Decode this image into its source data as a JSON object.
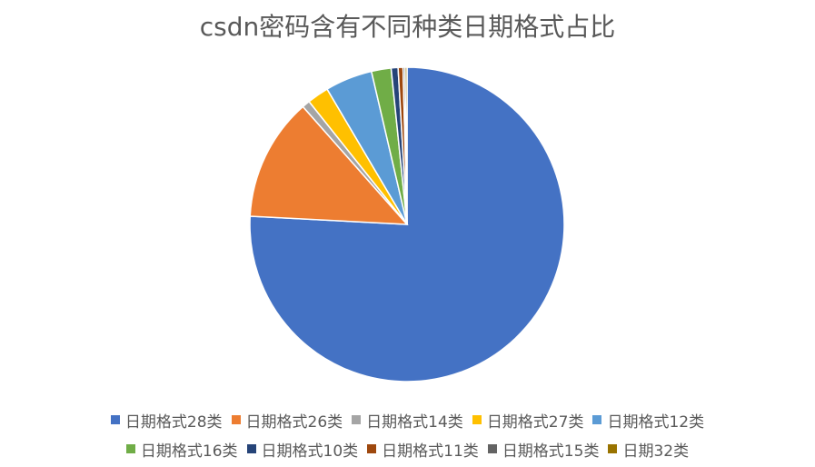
{
  "chart_data": {
    "type": "pie",
    "title": "csdn密码含有不同种类日期格式占比",
    "legend_position": "bottom",
    "series": [
      {
        "name": "日期格式28类",
        "value": 0.75,
        "color": "#4472C4"
      },
      {
        "name": "日期格式26类",
        "value": 0.125,
        "color": "#ED7D31"
      },
      {
        "name": "日期格式14类",
        "value": 0.008,
        "color": "#A5A5A5"
      },
      {
        "name": "日期格式27类",
        "value": 0.022,
        "color": "#FFC000"
      },
      {
        "name": "日期格式12类",
        "value": 0.048,
        "color": "#5B9BD5"
      },
      {
        "name": "日期格式16类",
        "value": 0.02,
        "color": "#70AD47"
      },
      {
        "name": "日期格式10类",
        "value": 0.007,
        "color": "#264478"
      },
      {
        "name": "日期格式11类",
        "value": 0.005,
        "color": "#9E480E"
      },
      {
        "name": "日期格式15类",
        "value": 0.002,
        "color": "#636363"
      },
      {
        "name": "日期32类",
        "value": 0.002,
        "color": "#997300"
      }
    ]
  }
}
